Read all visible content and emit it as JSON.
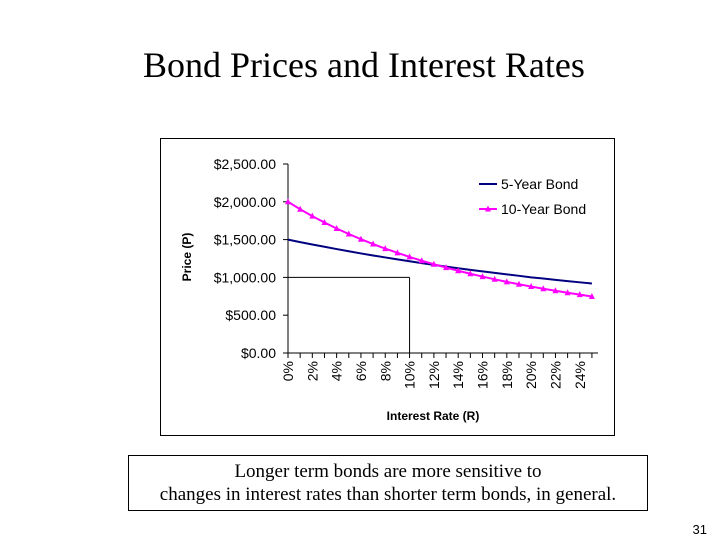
{
  "title": "Bond Prices and Interest Rates",
  "note": {
    "line1": "Longer term bonds are more sensitive to",
    "line2": "changes in interest rates than shorter term bonds, in general."
  },
  "page_number": "31",
  "chart_data": {
    "type": "line",
    "xlabel": "Interest Rate (R)",
    "ylabel": "Price (P)",
    "ylim": [
      0,
      2500
    ],
    "yticks": [
      "$0.00",
      "$500.00",
      "$1,000.00",
      "$1,500.00",
      "$2,000.00",
      "$2,500.00"
    ],
    "ytick_values": [
      0,
      500,
      1000,
      1500,
      2000,
      2500
    ],
    "x": [
      0,
      1,
      2,
      3,
      4,
      5,
      6,
      7,
      8,
      9,
      10,
      11,
      12,
      13,
      14,
      15,
      16,
      17,
      18,
      19,
      20,
      21,
      22,
      23,
      24,
      25
    ],
    "xtick_labels": [
      "0%",
      "2%",
      "4%",
      "6%",
      "8%",
      "10%",
      "12%",
      "14%",
      "16%",
      "18%",
      "20%",
      "22%",
      "24%"
    ],
    "xtick_values": [
      0,
      2,
      4,
      6,
      8,
      10,
      12,
      14,
      16,
      18,
      20,
      22,
      24
    ],
    "reference_point": {
      "x": 10,
      "y": 1000
    },
    "legend_position": "top-right",
    "grid": false,
    "series": [
      {
        "name": "5-Year Bond",
        "color": "#000080",
        "marker": "none",
        "values": [
          1500,
          1467,
          1435,
          1405,
          1375,
          1346,
          1317,
          1290,
          1264,
          1238,
          1213,
          1189,
          1166,
          1143,
          1121,
          1100,
          1080,
          1060,
          1040,
          1021,
          1000,
          985,
          968,
          951,
          935,
          919
        ]
      },
      {
        "name": "10-Year Bond",
        "color": "#ff00ff",
        "marker": "triangle",
        "values": [
          2000,
          1902,
          1811,
          1726,
          1647,
          1574,
          1505,
          1441,
          1381,
          1325,
          1271,
          1221,
          1174,
          1130,
          1088,
          1048,
          1011,
          975,
          941,
          909,
          879,
          850,
          823,
          797,
          772,
          748
        ]
      }
    ]
  }
}
